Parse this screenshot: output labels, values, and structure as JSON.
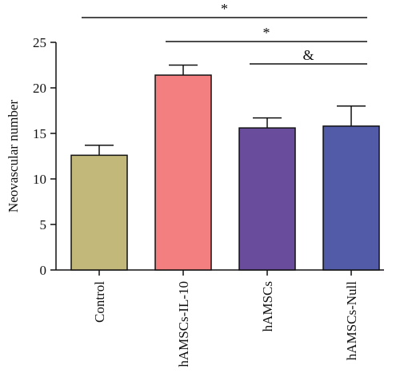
{
  "chart_data": {
    "type": "bar",
    "title": "",
    "xlabel": "",
    "ylabel": "Neovascular number",
    "ylim": [
      0,
      25
    ],
    "yticks": [
      0,
      5,
      10,
      15,
      20,
      25
    ],
    "grid": false,
    "categories": [
      "Control",
      "hAMSCs-IL-10",
      "hAMSCs",
      "hAMSCs-Null"
    ],
    "values": [
      12.6,
      21.4,
      15.6,
      15.8
    ],
    "errors": [
      1.1,
      1.1,
      1.1,
      2.2
    ],
    "colors": [
      "#C2B87A",
      "#F47F80",
      "#6A4C9C",
      "#525BA8"
    ],
    "significance": [
      {
        "from": 0,
        "to": 3,
        "label": "*"
      },
      {
        "from": 1,
        "to": 3,
        "label": "*"
      },
      {
        "from": 2,
        "to": 3,
        "label": "&"
      }
    ]
  }
}
